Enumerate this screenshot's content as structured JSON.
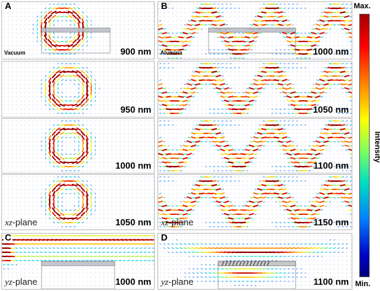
{
  "panels": {
    "A": {
      "label": "A",
      "medium": "Vacuum",
      "rows": [
        "900 nm",
        "950 nm",
        "1000 nm",
        "1050 nm"
      ],
      "plane": "xz",
      "plane_suffix": "-plane"
    },
    "B": {
      "label": "B",
      "medium": "Alumina",
      "rows": [
        "1000 nm",
        "1050 nm",
        "1100 nm",
        "1150 nm"
      ],
      "plane": "xz",
      "plane_suffix": "-plane"
    },
    "C": {
      "label": "C",
      "wavelength": "1000 nm",
      "plane": "yz",
      "plane_suffix": "-plane"
    },
    "D": {
      "label": "D",
      "wavelength": "1100 nm",
      "plane": "yz",
      "plane_suffix": "-plane"
    }
  },
  "colorbar": {
    "max_label": "Max.",
    "min_label": "Min.",
    "title": "Intensity"
  }
}
